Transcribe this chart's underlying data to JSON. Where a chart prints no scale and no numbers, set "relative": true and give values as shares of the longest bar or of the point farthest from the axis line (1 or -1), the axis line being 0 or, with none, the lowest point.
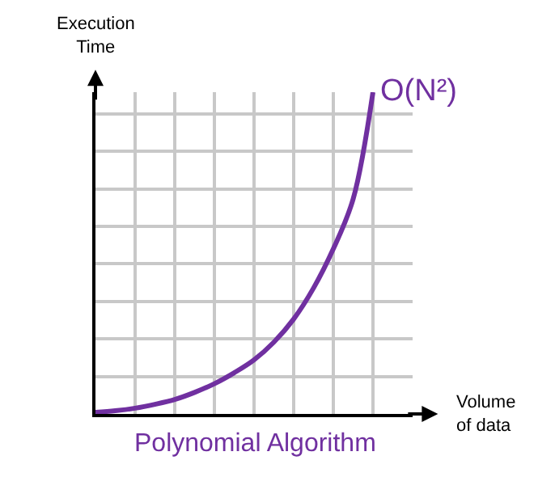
{
  "chart_data": {
    "type": "line",
    "relative": true,
    "title": "Polynomial Algorithm",
    "xlabel": "Volume\nof data",
    "ylabel": "Execution\nTime",
    "grid": true,
    "legend": false,
    "marker": "none",
    "line_style": "solid",
    "categories": [
      null,
      null,
      null,
      null,
      null,
      null,
      null,
      null,
      null,
      null,
      null,
      null,
      null,
      null,
      null,
      null,
      null
    ],
    "series": [
      {
        "name": "O(N²)",
        "color": "#7030a0",
        "values": [
          0.005,
          0.01,
          0.018,
          0.03,
          0.045,
          0.067,
          0.094,
          0.128,
          0.168,
          0.223,
          0.295,
          0.391,
          0.513,
          0.668,
          1,
          null,
          null
        ]
      }
    ]
  }
}
